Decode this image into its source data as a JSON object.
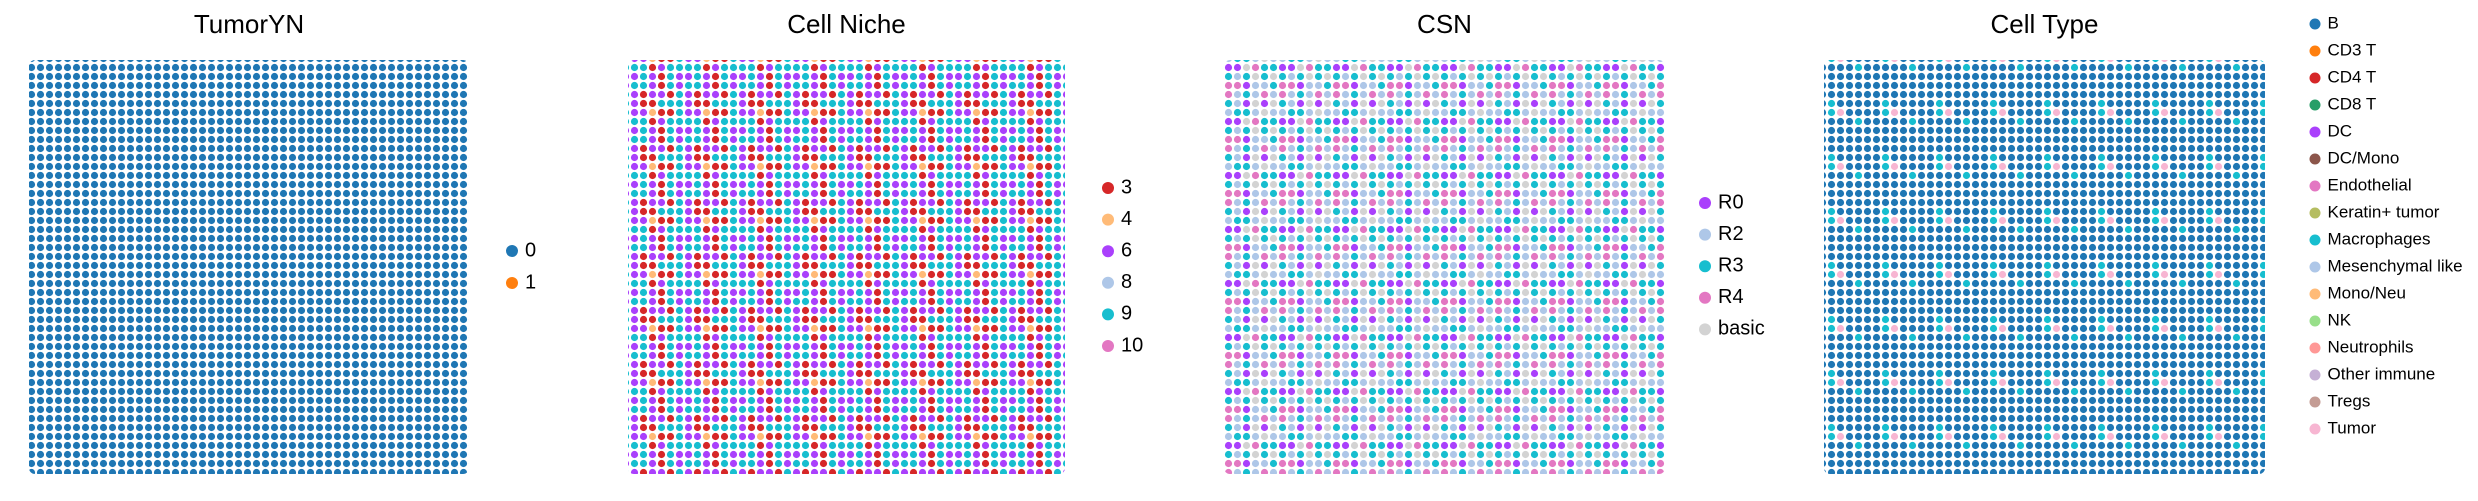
{
  "chart_data": [
    {
      "type": "scatter",
      "title": "TumorYN",
      "series": [
        {
          "name": "0",
          "color": "#1f77b4"
        },
        {
          "name": "1",
          "color": "#ff7f0e"
        }
      ]
    },
    {
      "type": "scatter",
      "title": "Cell Niche",
      "series": [
        {
          "name": "3",
          "color": "#d62728"
        },
        {
          "name": "4",
          "color": "#ffbb78"
        },
        {
          "name": "6",
          "color": "#aa40fc"
        },
        {
          "name": "8",
          "color": "#aec7e8"
        },
        {
          "name": "9",
          "color": "#17becf"
        },
        {
          "name": "10",
          "color": "#e377c2"
        }
      ]
    },
    {
      "type": "scatter",
      "title": "CSN",
      "series": [
        {
          "name": "R0",
          "color": "#aa40fc"
        },
        {
          "name": "R2",
          "color": "#aec7e8"
        },
        {
          "name": "R3",
          "color": "#17becf"
        },
        {
          "name": "R4",
          "color": "#e377c2"
        },
        {
          "name": "basic",
          "color": "#d3d3d3"
        }
      ]
    },
    {
      "type": "scatter",
      "title": "Cell Type",
      "series": [
        {
          "name": "B",
          "color": "#1f77b4"
        },
        {
          "name": "CD3 T",
          "color": "#ff7f0e"
        },
        {
          "name": "CD4 T",
          "color": "#d62728"
        },
        {
          "name": "CD8 T",
          "color": "#279e68"
        },
        {
          "name": "DC",
          "color": "#aa40fc"
        },
        {
          "name": "DC/Mono",
          "color": "#8c564b"
        },
        {
          "name": "Endothelial",
          "color": "#e377c2"
        },
        {
          "name": "Keratin+ tumor",
          "color": "#b5bd61"
        },
        {
          "name": "Macrophages",
          "color": "#17becf"
        },
        {
          "name": "Mesenchymal like",
          "color": "#aec7e8"
        },
        {
          "name": "Mono/Neu",
          "color": "#ffbb78"
        },
        {
          "name": "NK",
          "color": "#98df8a"
        },
        {
          "name": "Neutrophils",
          "color": "#ff9896"
        },
        {
          "name": "Other immune",
          "color": "#c5b0d5"
        },
        {
          "name": "Tregs",
          "color": "#c49c94"
        },
        {
          "name": "Tumor",
          "color": "#f7b6d2"
        }
      ]
    }
  ]
}
